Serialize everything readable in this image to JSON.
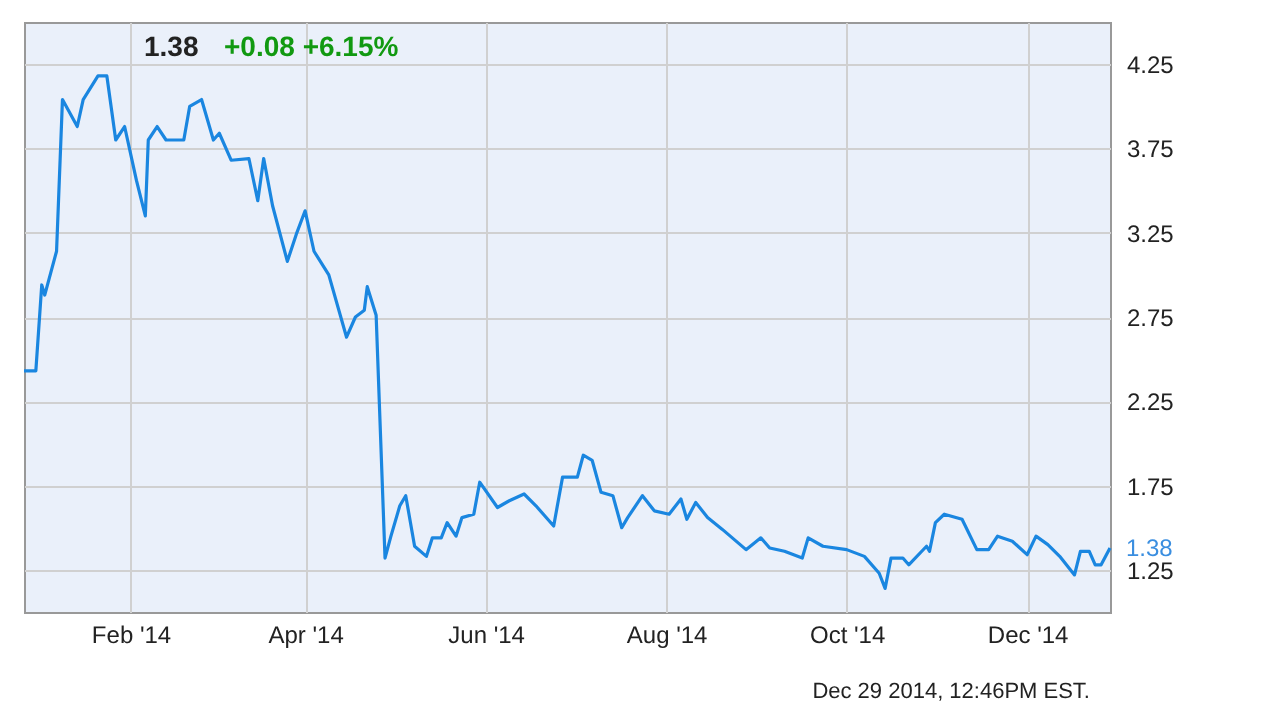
{
  "chart_data": {
    "type": "line",
    "title": "1.38",
    "annotations": [
      "+0.08  +6.15%",
      "Dec 29 2014, 12:46PM EST.",
      {
        "text": "1.38",
        "x": "2014-12-29",
        "y": 1.38
      }
    ],
    "x": [
      "2013-12-27",
      "2013-12-31",
      "2014-01-02",
      "2014-01-03",
      "2014-01-07",
      "2014-01-09",
      "2014-01-14",
      "2014-01-16",
      "2014-01-21",
      "2014-01-24",
      "2014-01-27",
      "2014-01-30",
      "2014-02-03",
      "2014-02-06",
      "2014-02-07",
      "2014-02-10",
      "2014-02-13",
      "2014-02-19",
      "2014-02-21",
      "2014-02-25",
      "2014-03-01",
      "2014-03-03",
      "2014-03-07",
      "2014-03-13",
      "2014-03-16",
      "2014-03-18",
      "2014-03-21",
      "2014-03-26",
      "2014-03-29",
      "2014-04-01",
      "2014-04-04",
      "2014-04-09",
      "2014-04-15",
      "2014-04-18",
      "2014-04-21",
      "2014-04-22",
      "2014-04-25",
      "2014-04-28",
      "2014-04-30",
      "2014-05-03",
      "2014-05-05",
      "2014-05-08",
      "2014-05-12",
      "2014-05-14",
      "2014-05-17",
      "2014-05-19",
      "2014-05-22",
      "2014-05-24",
      "2014-05-28",
      "2014-05-30",
      "2014-06-05",
      "2014-06-09",
      "2014-06-14",
      "2014-06-18",
      "2014-06-24",
      "2014-06-27",
      "2014-07-02",
      "2014-07-04",
      "2014-07-07",
      "2014-07-10",
      "2014-07-14",
      "2014-07-17",
      "2014-07-19",
      "2014-07-24",
      "2014-07-28",
      "2014-08-02",
      "2014-08-06",
      "2014-08-08",
      "2014-08-11",
      "2014-08-15",
      "2014-08-20",
      "2014-08-28",
      "2014-09-02",
      "2014-09-05",
      "2014-09-10",
      "2014-09-16",
      "2014-09-18",
      "2014-09-23",
      "2014-10-01",
      "2014-10-07",
      "2014-10-12",
      "2014-10-14",
      "2014-10-16",
      "2014-10-20",
      "2014-10-22",
      "2014-10-28",
      "2014-10-29",
      "2014-10-31",
      "2014-11-03",
      "2014-11-09",
      "2014-11-14",
      "2014-11-18",
      "2014-11-21",
      "2014-11-26",
      "2014-12-01",
      "2014-12-04",
      "2014-12-08",
      "2014-12-12",
      "2014-12-17",
      "2014-12-19",
      "2014-12-22",
      "2014-12-24",
      "2014-12-26",
      "2014-12-29"
    ],
    "series": [
      {
        "color": "#1a86e0",
        "values": [
          2.43,
          2.43,
          2.94,
          2.88,
          3.14,
          4.04,
          3.88,
          4.04,
          4.18,
          4.18,
          3.8,
          3.88,
          3.56,
          3.35,
          3.8,
          3.88,
          3.8,
          3.8,
          4.0,
          4.04,
          3.8,
          3.84,
          3.68,
          3.69,
          3.44,
          3.69,
          3.41,
          3.08,
          3.24,
          3.38,
          3.14,
          3.0,
          2.63,
          2.75,
          2.79,
          2.93,
          2.76,
          1.32,
          1.45,
          1.63,
          1.69,
          1.39,
          1.33,
          1.44,
          1.44,
          1.53,
          1.45,
          1.56,
          1.58,
          1.77,
          1.62,
          1.66,
          1.7,
          1.63,
          1.51,
          1.8,
          1.8,
          1.93,
          1.9,
          1.71,
          1.69,
          1.5,
          1.56,
          1.69,
          1.6,
          1.58,
          1.67,
          1.55,
          1.65,
          1.56,
          1.49,
          1.37,
          1.44,
          1.38,
          1.36,
          1.32,
          1.44,
          1.39,
          1.37,
          1.33,
          1.23,
          1.14,
          1.32,
          1.32,
          1.28,
          1.39,
          1.36,
          1.53,
          1.58,
          1.55,
          1.37,
          1.37,
          1.45,
          1.42,
          1.34,
          1.45,
          1.4,
          1.33,
          1.22,
          1.36,
          1.36,
          1.28,
          1.28,
          1.38
        ]
      }
    ],
    "xlim": [
      "2013-12-27",
      "2014-12-29"
    ],
    "xticks": [
      {
        "value": "2014-02-01",
        "label": "Feb '14"
      },
      {
        "value": "2014-04-01",
        "label": "Apr '14"
      },
      {
        "value": "2014-06-01",
        "label": "Jun '14"
      },
      {
        "value": "2014-08-01",
        "label": "Aug '14"
      },
      {
        "value": "2014-10-01",
        "label": "Oct '14"
      },
      {
        "value": "2014-12-01",
        "label": "Dec '14"
      }
    ],
    "ylim": [
      1.0,
      4.5
    ],
    "yticks": [
      1.25,
      1.75,
      2.25,
      2.75,
      3.25,
      3.75,
      4.25
    ],
    "grid": true,
    "marker": "none",
    "line_style": "solid"
  }
}
